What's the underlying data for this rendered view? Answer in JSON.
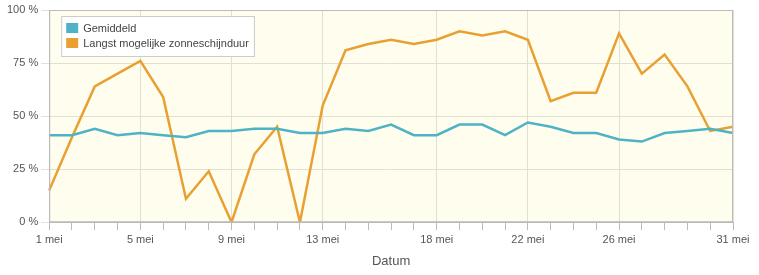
{
  "chart_data": {
    "type": "line",
    "x_label": "Datum",
    "categories": [
      "1 mei",
      null,
      null,
      null,
      "5 mei",
      null,
      null,
      null,
      "9 mei",
      null,
      null,
      null,
      "13 mei",
      null,
      null,
      null,
      null,
      "18 mei",
      null,
      null,
      null,
      "22 mei",
      null,
      null,
      null,
      "26 mei",
      null,
      null,
      null,
      null,
      "31 mei"
    ],
    "series": [
      {
        "name": "Gemiddeld",
        "color": "#4fb3c6",
        "values": [
          41,
          41,
          44,
          41,
          42,
          41,
          40,
          43,
          43,
          44,
          44,
          42,
          42,
          44,
          43,
          46,
          41,
          41,
          46,
          46,
          41,
          47,
          45,
          42,
          42,
          39,
          38,
          42,
          43,
          44,
          42
        ]
      },
      {
        "name": "Langst mogelijke zonneschijnduur",
        "color": "#e8a032",
        "values": [
          15,
          40,
          64,
          70,
          76,
          59,
          11,
          24,
          0,
          32,
          45,
          0,
          55,
          81,
          84,
          86,
          84,
          86,
          90,
          88,
          90,
          86,
          57,
          61,
          61,
          89,
          70,
          79,
          64,
          43,
          45
        ]
      }
    ],
    "ylim": [
      0,
      100
    ],
    "yticks": [
      {
        "value": 0,
        "label": "0 %"
      },
      {
        "value": 25,
        "label": "25 %"
      },
      {
        "value": 50,
        "label": "50 %"
      },
      {
        "value": 75,
        "label": "75 %"
      },
      {
        "value": 100,
        "label": "100 %"
      }
    ],
    "grid": true,
    "legend": "upper left"
  }
}
